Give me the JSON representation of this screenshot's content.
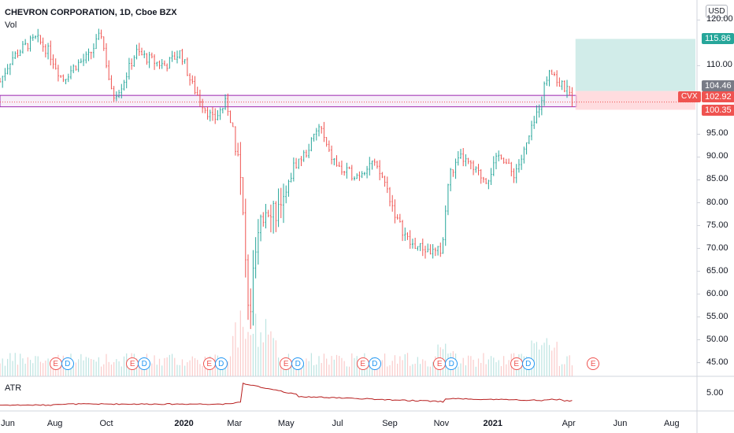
{
  "header": {
    "title": "CHEVRON CORPORATION, 1D, Cboe BZX",
    "volume_label": "Vol",
    "indicator_label": "ATR",
    "currency": "USD"
  },
  "price_axis": {
    "ticks": [
      "120.00",
      "110.00",
      "95.00",
      "90.00",
      "85.00",
      "80.00",
      "75.00",
      "70.00",
      "65.00",
      "60.00",
      "55.00",
      "50.00",
      "45.00"
    ]
  },
  "atr_axis": {
    "ticks": [
      "5.00"
    ]
  },
  "price_tags": {
    "target": "115.86",
    "entry": "104.46",
    "current": "102.92",
    "stop": "100.35",
    "symbol": "CVX"
  },
  "time_axis": {
    "labels": [
      "Jun",
      "Aug",
      "Oct",
      "2020",
      "Mar",
      "May",
      "Jul",
      "Sep",
      "Nov",
      "2021",
      "Apr",
      "Jun",
      "Aug"
    ]
  },
  "events": {
    "earnings_label": "E",
    "dividend_label": "D"
  },
  "colors": {
    "up": "#26a69a",
    "down": "#ef5350",
    "zone_line": "#9c27b0",
    "atr_line": "#b71c1c",
    "target_zone": "#b2dfdb",
    "stop_zone": "#ffcdd2",
    "entry_tag": "#787b86"
  },
  "chart_data": {
    "type": "candlestick",
    "series_name": "CVX",
    "x_range": [
      "2019-05-28",
      "2021-08-31"
    ],
    "ylim": [
      42,
      123
    ],
    "close_path": [
      [
        "2019-05-28",
        106.5
      ],
      [
        "2019-06-10",
        111.5
      ],
      [
        "2019-06-25",
        114
      ],
      [
        "2019-07-10",
        116
      ],
      [
        "2019-07-25",
        113
      ],
      [
        "2019-08-10",
        107
      ],
      [
        "2019-08-25",
        110
      ],
      [
        "2019-09-10",
        112
      ],
      [
        "2019-09-25",
        117
      ],
      [
        "2019-10-08",
        103
      ],
      [
        "2019-10-20",
        106
      ],
      [
        "2019-11-05",
        113
      ],
      [
        "2019-11-25",
        111
      ],
      [
        "2019-12-10",
        110
      ],
      [
        "2019-12-28",
        113
      ],
      [
        "2020-01-10",
        106
      ],
      [
        "2020-01-25",
        101
      ],
      [
        "2020-02-05",
        98
      ],
      [
        "2020-02-20",
        102
      ],
      [
        "2020-03-05",
        92
      ],
      [
        "2020-03-12",
        74
      ],
      [
        "2020-03-18",
        53
      ],
      [
        "2020-03-25",
        68
      ],
      [
        "2020-04-08",
        80
      ],
      [
        "2020-04-25",
        78
      ],
      [
        "2020-05-10",
        88
      ],
      [
        "2020-05-25",
        91
      ],
      [
        "2020-06-05",
        95
      ],
      [
        "2020-06-10",
        97
      ],
      [
        "2020-06-20",
        91
      ],
      [
        "2020-07-05",
        87
      ],
      [
        "2020-07-25",
        86
      ],
      [
        "2020-08-10",
        89
      ],
      [
        "2020-08-25",
        85
      ],
      [
        "2020-09-10",
        76
      ],
      [
        "2020-09-25",
        71
      ],
      [
        "2020-10-10",
        70
      ],
      [
        "2020-10-25",
        69
      ],
      [
        "2020-11-02",
        70
      ],
      [
        "2020-11-10",
        86
      ],
      [
        "2020-11-25",
        90
      ],
      [
        "2020-12-10",
        87
      ],
      [
        "2020-12-25",
        85
      ],
      [
        "2021-01-10",
        91
      ],
      [
        "2021-01-25",
        86
      ],
      [
        "2021-02-05",
        90
      ],
      [
        "2021-02-20",
        98
      ],
      [
        "2021-03-01",
        104
      ],
      [
        "2021-03-10",
        110
      ],
      [
        "2021-03-20",
        106
      ],
      [
        "2021-03-28",
        105
      ],
      [
        "2021-04-05",
        102.92
      ]
    ],
    "support_zone": [
      101.0,
      103.5
    ],
    "trade_setup": {
      "target": 115.86,
      "entry": 104.46,
      "stop": 100.35
    },
    "earnings_dates": [
      "2019-08-02",
      "2019-11-01",
      "2020-01-31",
      "2020-05-01",
      "2020-07-31",
      "2020-10-30",
      "2021-01-29",
      "2021-04-30"
    ],
    "dividend_dates": [
      "2019-08-16",
      "2019-11-15",
      "2020-02-14",
      "2020-05-15",
      "2020-08-14",
      "2020-11-13",
      "2021-02-12"
    ],
    "atr_ylim": [
      0,
      10
    ],
    "atr_ticks": [
      5.0
    ],
    "legend": "none",
    "grid": false
  }
}
